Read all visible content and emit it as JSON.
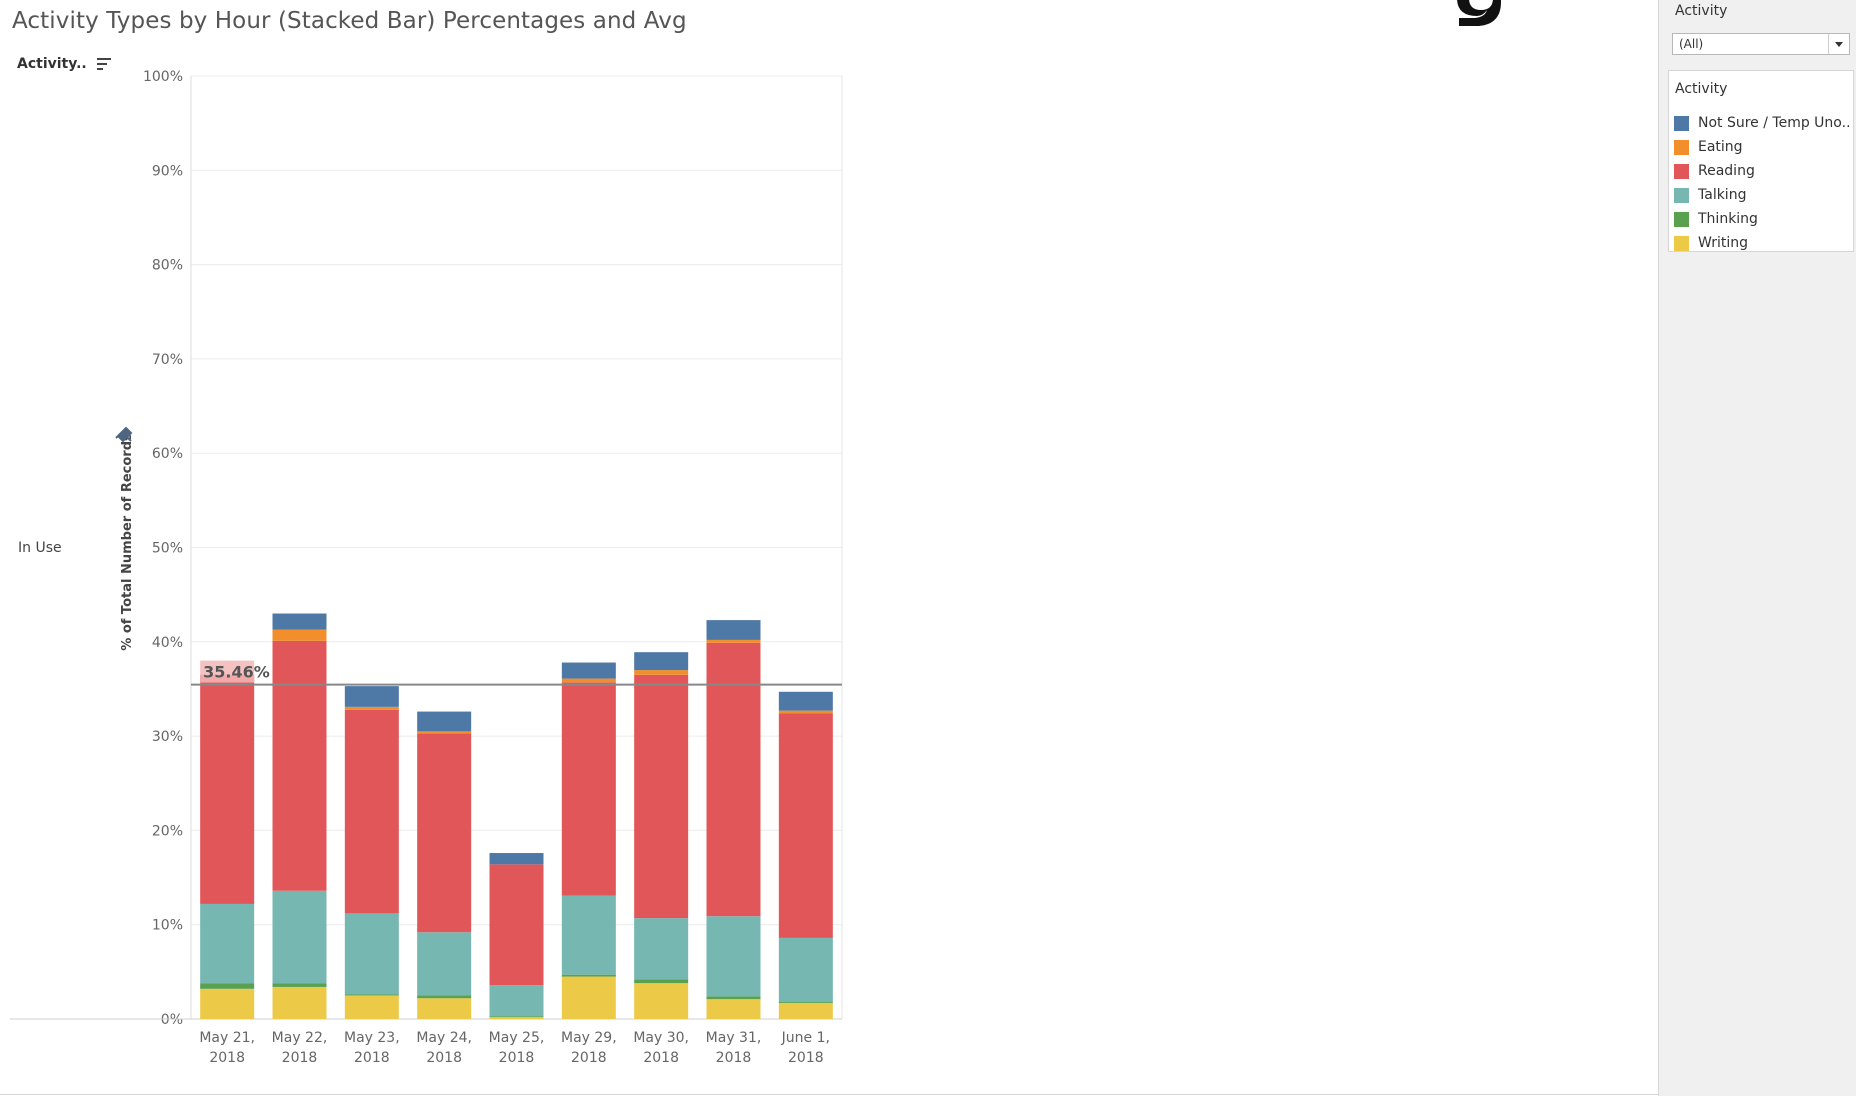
{
  "title": "Activity Types by Hour (Stacked Bar) Percentages and Avg",
  "sort_header": {
    "label": "Activity.."
  },
  "row_label": "In Use",
  "filter": {
    "label": "Activity",
    "value": "(All)"
  },
  "legend": {
    "title": "Activity",
    "items": [
      {
        "label": "Not Sure / Temp Uno..",
        "color": "#4e79a7"
      },
      {
        "label": "Eating",
        "color": "#f28e2b"
      },
      {
        "label": "Reading",
        "color": "#e15759"
      },
      {
        "label": "Talking",
        "color": "#76b7b2"
      },
      {
        "label": "Thinking",
        "color": "#59a14f"
      },
      {
        "label": "Writing",
        "color": "#edc948"
      }
    ]
  },
  "chart_data": {
    "type": "bar",
    "stacked": true,
    "title": "Activity Types by Hour (Stacked Bar) Percentages and Avg",
    "xlabel": "",
    "ylabel": "% of Total Number of Records",
    "ylim": [
      0,
      100
    ],
    "yticks": [
      "0%",
      "10%",
      "20%",
      "30%",
      "40%",
      "50%",
      "60%",
      "70%",
      "80%",
      "90%",
      "100%"
    ],
    "categories": [
      [
        "May 21,",
        "2018"
      ],
      [
        "May 22,",
        "2018"
      ],
      [
        "May 23,",
        "2018"
      ],
      [
        "May 24,",
        "2018"
      ],
      [
        "May 25,",
        "2018"
      ],
      [
        "May 29,",
        "2018"
      ],
      [
        "May 30,",
        "2018"
      ],
      [
        "May 31,",
        "2018"
      ],
      [
        "June 1,",
        "2018"
      ]
    ],
    "series": [
      {
        "name": "Writing",
        "color": "#edc948",
        "values": [
          3.2,
          3.4,
          2.5,
          2.2,
          0.2,
          4.5,
          3.8,
          2.1,
          1.7
        ]
      },
      {
        "name": "Thinking",
        "color": "#59a14f",
        "values": [
          0.6,
          0.4,
          0.1,
          0.3,
          0.1,
          0.2,
          0.4,
          0.3,
          0.1
        ]
      },
      {
        "name": "Talking",
        "color": "#76b7b2",
        "values": [
          8.4,
          9.8,
          8.6,
          6.7,
          3.3,
          8.4,
          6.5,
          8.5,
          6.8
        ]
      },
      {
        "name": "Reading",
        "color": "#e15759",
        "values": [
          24.2,
          26.5,
          21.6,
          21.1,
          12.8,
          22.6,
          25.8,
          29.0,
          23.8
        ]
      },
      {
        "name": "Eating",
        "color": "#f28e2b",
        "values": [
          0,
          1.2,
          0.3,
          0.2,
          0,
          0.4,
          0.5,
          0.3,
          0.3
        ]
      },
      {
        "name": "Not Sure / Temp Uno..",
        "color": "#4e79a7",
        "values": [
          0.1,
          1.7,
          2.2,
          2.1,
          1.2,
          1.7,
          1.9,
          2.1,
          2.0
        ]
      }
    ],
    "reference_line": {
      "value": 35.46,
      "label": "35.46%"
    }
  }
}
